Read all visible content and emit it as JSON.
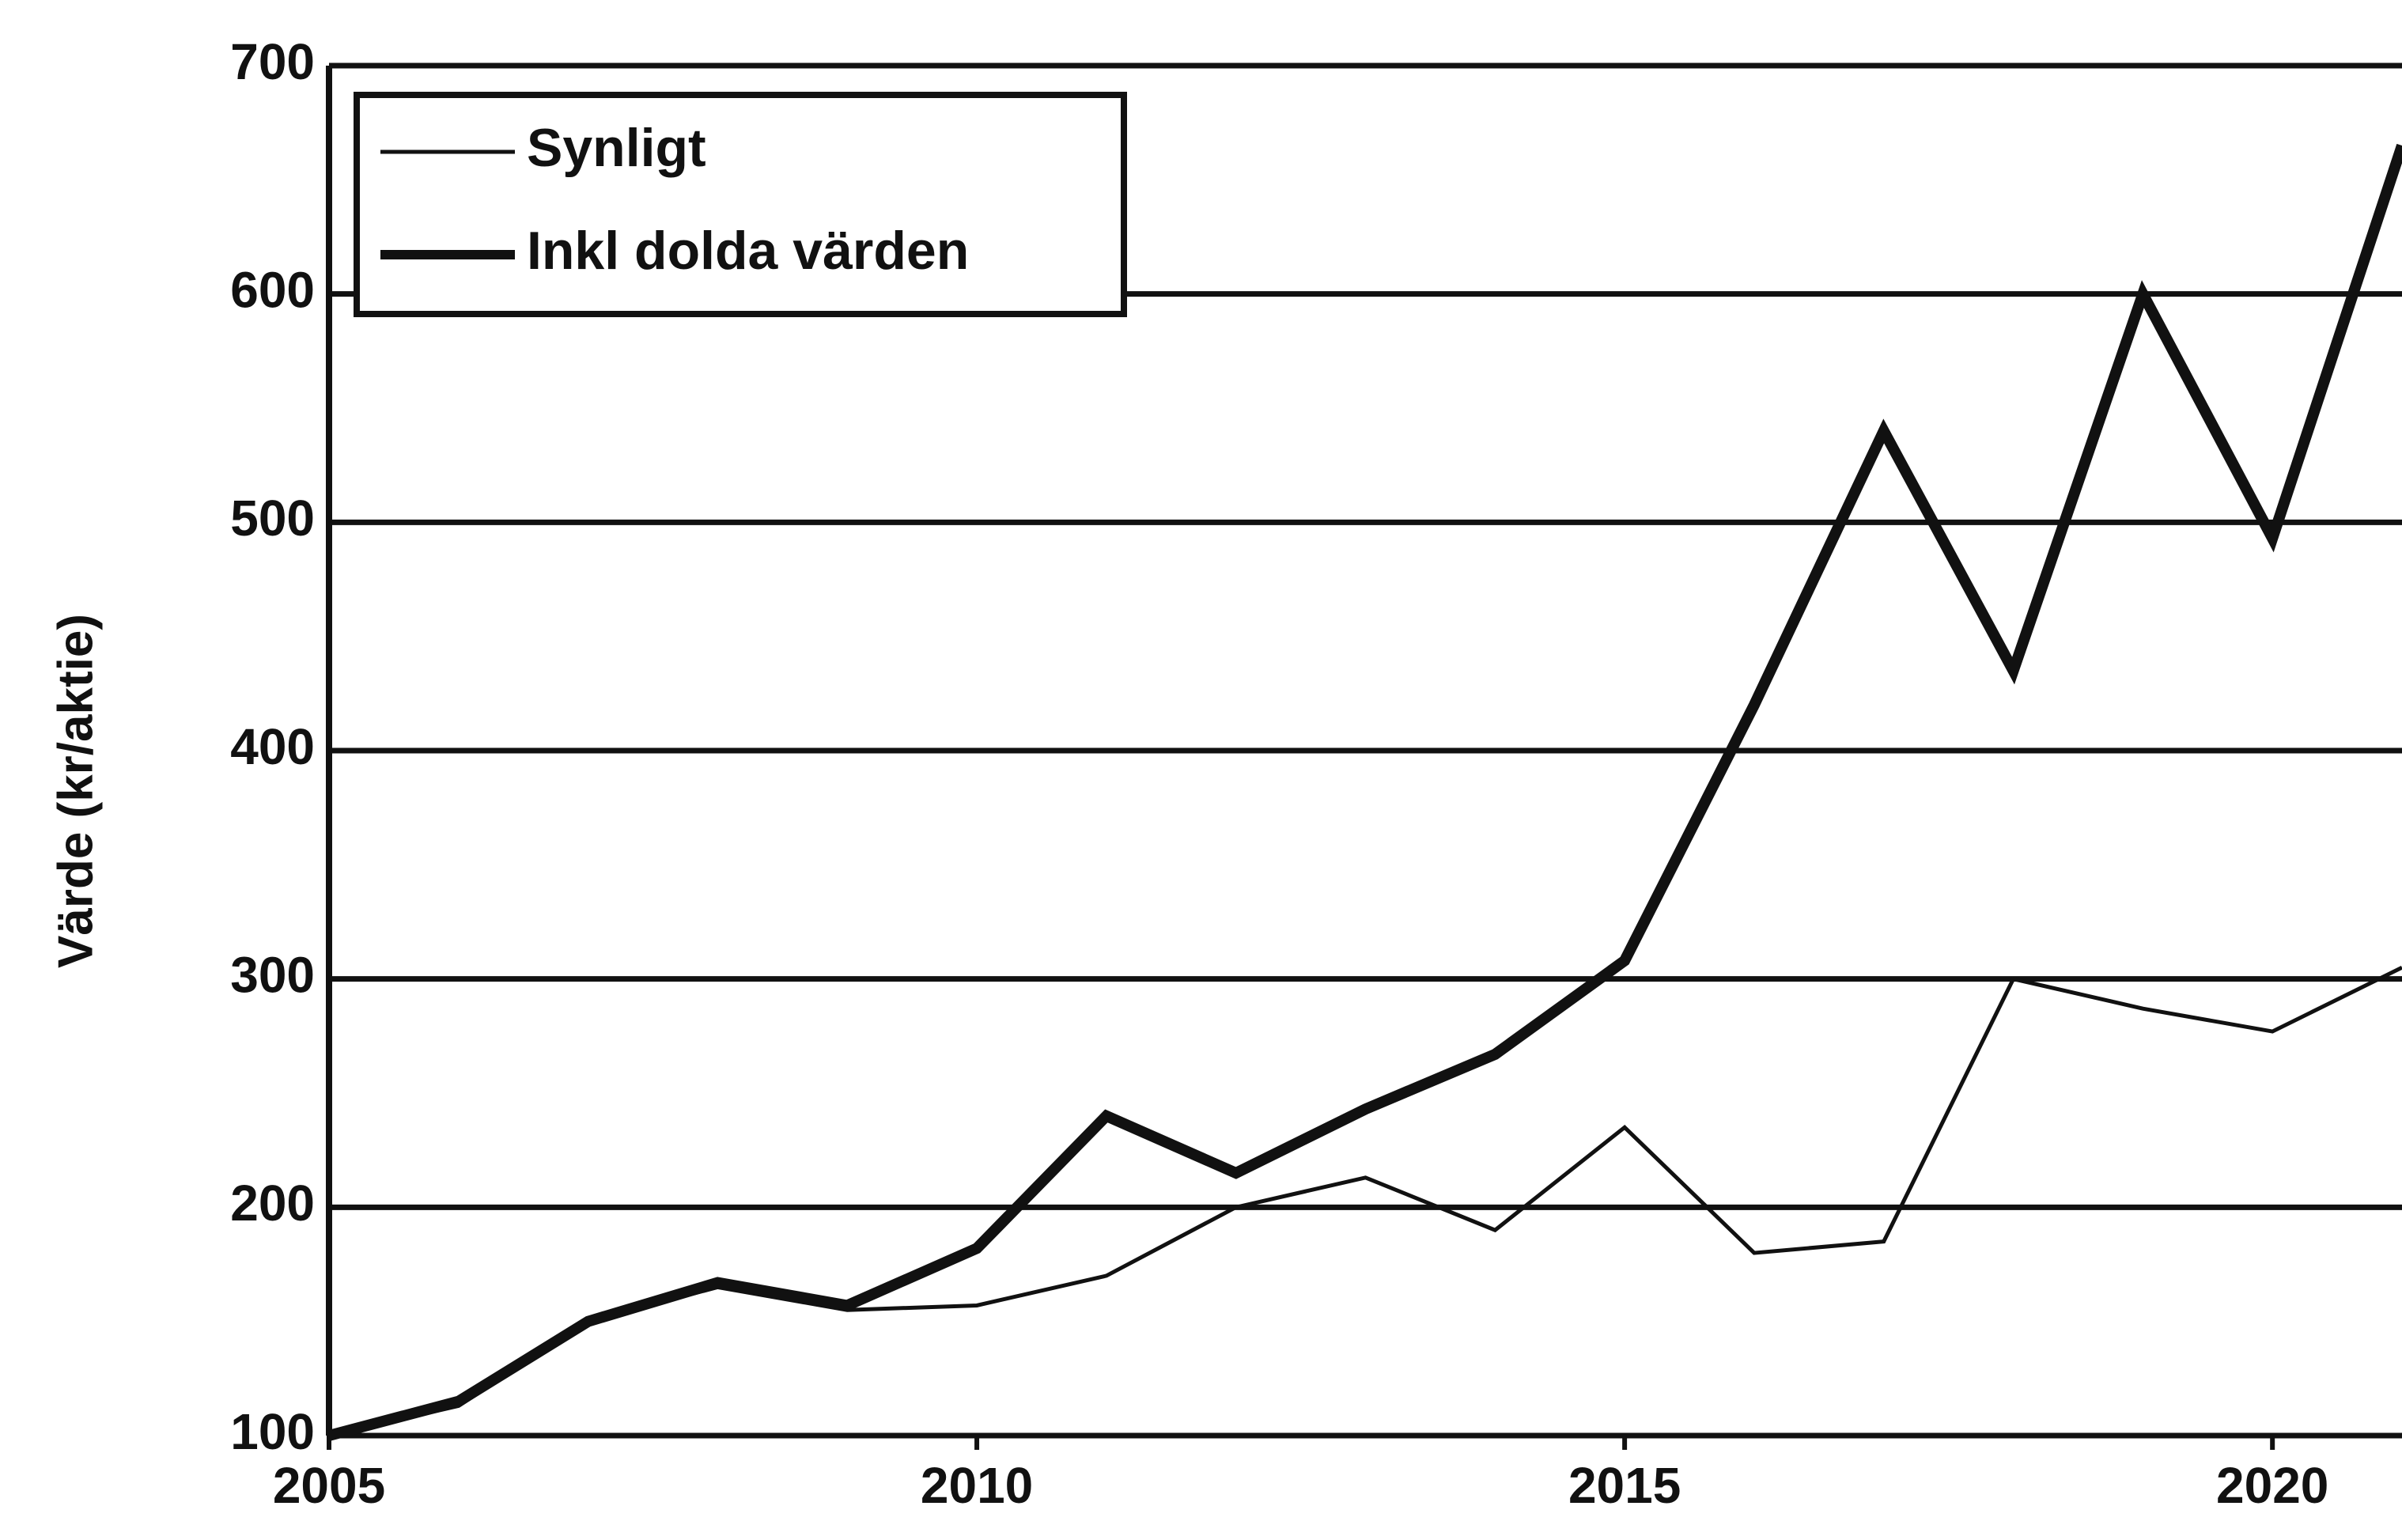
{
  "chart_data": {
    "type": "line",
    "y_label": "Värde (kr/aktie)",
    "x": [
      2005,
      2006,
      2007,
      2008,
      2009,
      2010,
      2011,
      2012,
      2013,
      2014,
      2015,
      2016,
      2017,
      2018,
      2019,
      2020,
      2021
    ],
    "series": [
      {
        "name": "Synligt",
        "color": "#111111",
        "values": [
          100,
          113,
          150,
          165,
          155,
          157,
          170,
          200,
          213,
          190,
          235,
          180,
          185,
          300,
          287,
          277,
          305
        ]
      },
      {
        "name": "Inkl dolda värden",
        "color": "#111111",
        "values": [
          100,
          115,
          150,
          167,
          157,
          182,
          240,
          215,
          243,
          267,
          308,
          420,
          540,
          435,
          600,
          493,
          665
        ]
      }
    ],
    "xlim": [
      2005,
      2021
    ],
    "xticks": [
      2005,
      2010,
      2015,
      2020
    ],
    "ylim": [
      100,
      700
    ],
    "yticks": [
      100,
      200,
      300,
      400,
      500,
      600,
      700
    ],
    "grid": true,
    "legend": "upper left"
  }
}
